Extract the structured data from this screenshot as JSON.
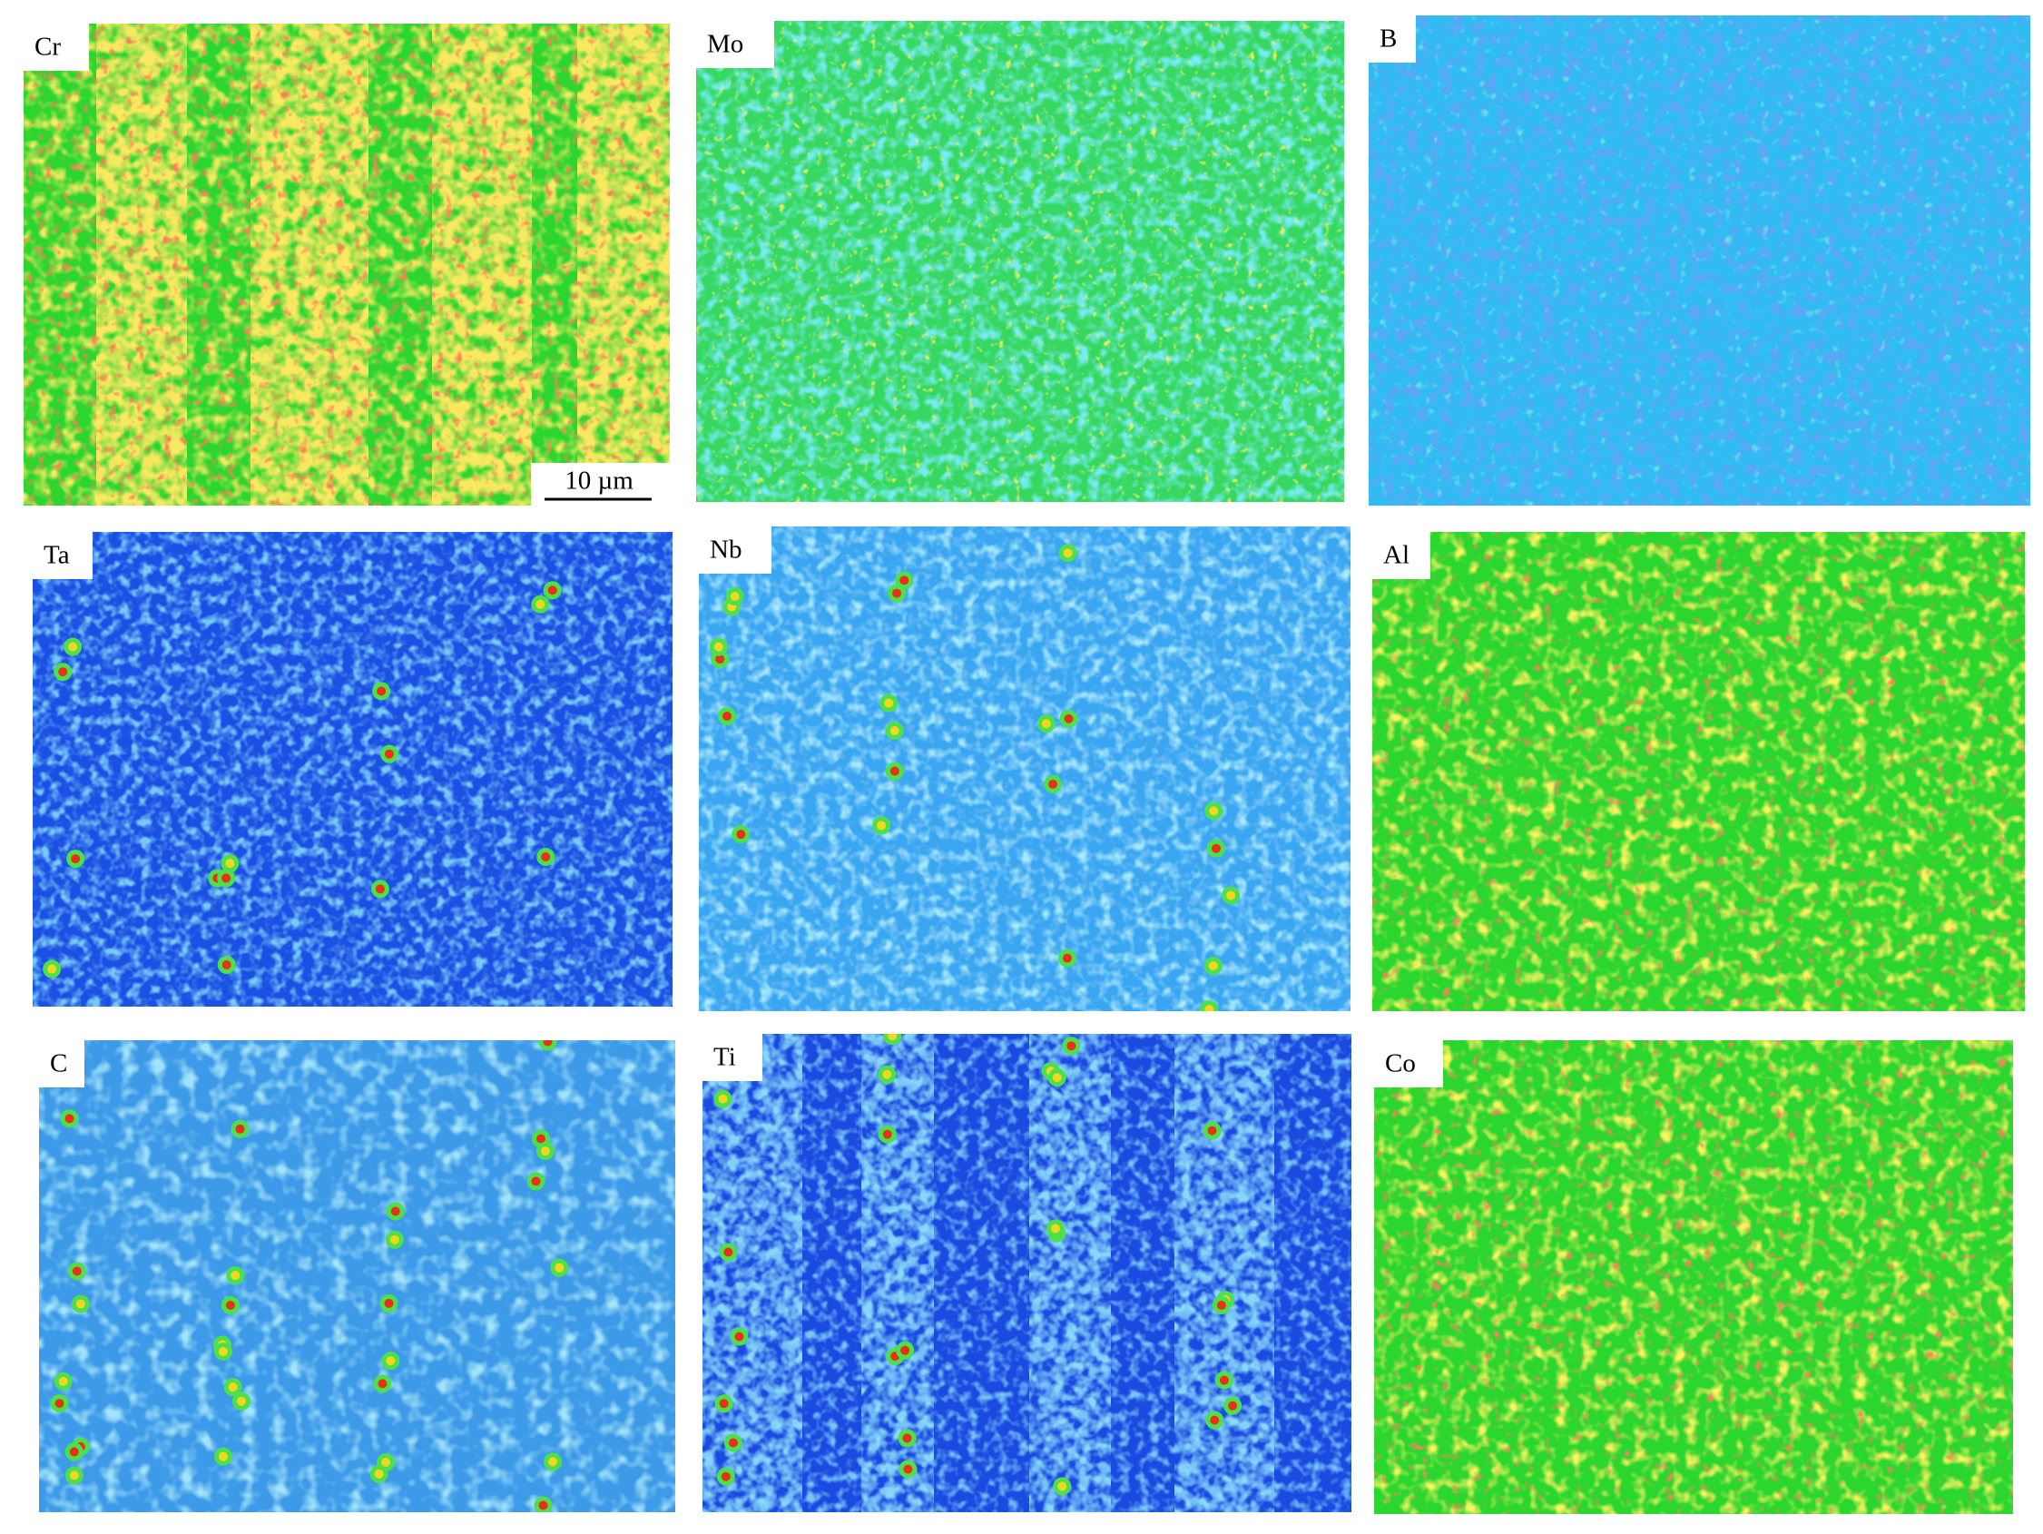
{
  "panels": [
    {
      "label": "Cr"
    },
    {
      "label": "Mo"
    },
    {
      "label": "B"
    },
    {
      "label": "Ta"
    },
    {
      "label": "Nb"
    },
    {
      "label": "Al"
    },
    {
      "label": "C"
    },
    {
      "label": "Ti"
    },
    {
      "label": "Co"
    }
  ],
  "scale_bar": {
    "label": "10 µm"
  }
}
